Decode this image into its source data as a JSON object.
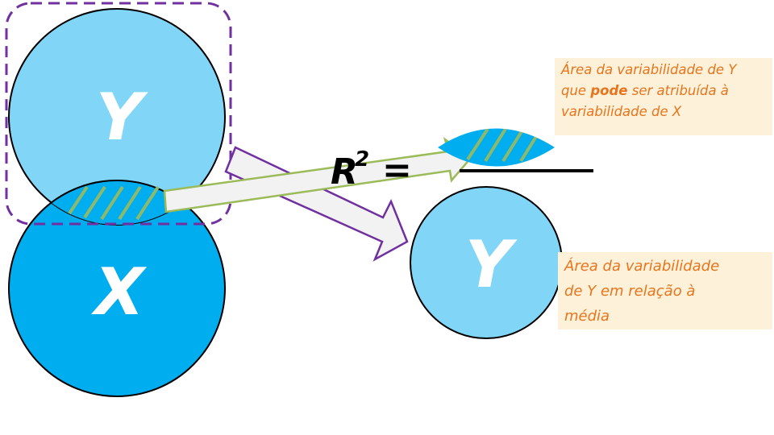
{
  "labels": {
    "circle_y_large": "Y",
    "circle_x": "X",
    "circle_y_small": "Y",
    "formula_r": "R",
    "formula_exp": "2",
    "formula_eq": "="
  },
  "notes": {
    "top": {
      "line1": "Área da variabilidade de Y",
      "line2_pre": "que ",
      "line2_bold": "pode",
      "line2_post": " ser atribuída à",
      "line3": "variabilidade de X"
    },
    "bottom": {
      "line1": "Área da variabilidade",
      "line2": "de Y em relação à",
      "line3": "média"
    }
  },
  "colors": {
    "light_blue": "#81d5f6",
    "dark_blue": "#00adee",
    "purple_dash": "#7030a0",
    "arrow_green": "#9bbb59",
    "hatch": "#8fb96a",
    "note_bg": "#fdf2d9",
    "note_text": "#e8741c"
  }
}
